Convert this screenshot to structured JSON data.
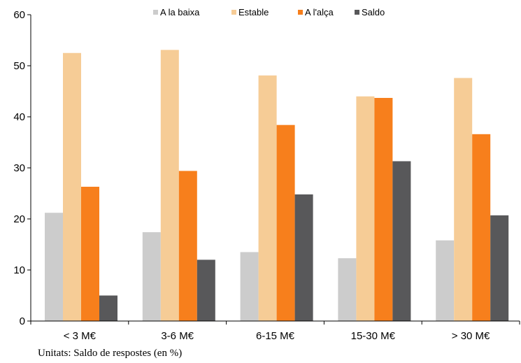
{
  "chart_data": {
    "type": "bar",
    "categories": [
      "< 3 M€",
      "3-6 M€",
      "6-15 M€",
      "15-30 M€",
      "> 30 M€"
    ],
    "series": [
      {
        "name": "A la baixa",
        "color": "#cccccc",
        "values": [
          21.2,
          17.4,
          13.5,
          12.3,
          15.8
        ]
      },
      {
        "name": "Estable",
        "color": "#f6cc96",
        "values": [
          52.5,
          53.1,
          48.1,
          44.0,
          47.6
        ]
      },
      {
        "name": "A l'alça",
        "color": "#f77f1c",
        "values": [
          26.3,
          29.4,
          38.4,
          43.7,
          36.6
        ]
      },
      {
        "name": "Saldo",
        "color": "#58585a",
        "values": [
          5.0,
          12.0,
          24.8,
          31.3,
          20.7
        ]
      }
    ],
    "yticks": [
      0,
      10,
      20,
      30,
      40,
      50,
      60
    ],
    "ylim": [
      0,
      60
    ],
    "title": "",
    "xlabel": "",
    "ylabel": "",
    "legend": "top-center",
    "grid": false
  },
  "footnote": "Unitats: Saldo de respostes (en %)"
}
